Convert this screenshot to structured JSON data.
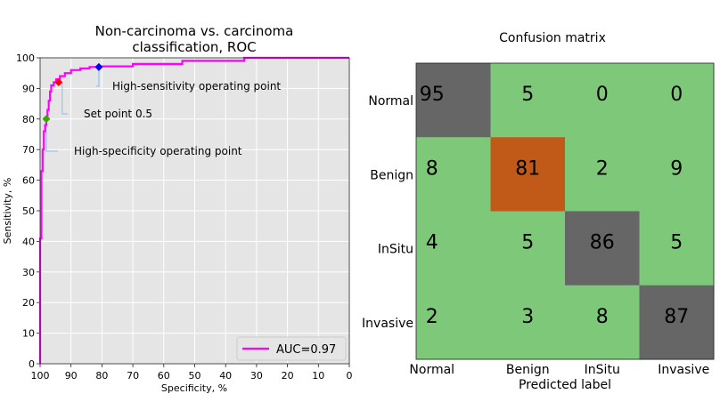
{
  "roc": {
    "title_line1": "Non-carcinoma vs. carcinoma",
    "title_line2": "classification, ROC",
    "xlabel": "Specificity, %",
    "ylabel": "Sensitivity, %",
    "xticks": [
      "100",
      "90",
      "80",
      "70",
      "60",
      "50",
      "40",
      "30",
      "20",
      "10",
      "0"
    ],
    "yticks": [
      "0",
      "10",
      "20",
      "30",
      "40",
      "50",
      "60",
      "70",
      "80",
      "90",
      "100"
    ],
    "legend_label": "AUC=0.97",
    "annotations": {
      "high_sens": "High-sensitivity operating point",
      "set_point": "Set point 0.5",
      "high_spec": "High-specificity operating point"
    },
    "colors": {
      "curve": "#ff00ff",
      "background": "#e5e5e5",
      "grid": "#ffffff",
      "high_sens_marker": "#0000ff",
      "set_point_marker": "#ff0000",
      "high_spec_marker": "#33aa00",
      "annotation_line": "#88bbee"
    }
  },
  "chart_data": [
    {
      "type": "line",
      "title": "Non-carcinoma vs. carcinoma classification, ROC",
      "xlabel": "Specificity, %",
      "ylabel": "Sensitivity, %",
      "xlim": [
        100,
        0
      ],
      "ylim": [
        0,
        100
      ],
      "grid": true,
      "legend_position": "bottom-right",
      "series": [
        {
          "name": "AUC=0.97",
          "specificity": [
            100,
            100,
            99.6,
            99.6,
            99.2,
            99.2,
            98.8,
            98.8,
            98.4,
            98.4,
            98,
            98,
            97.6,
            97.6,
            97.2,
            97.2,
            96.8,
            96.8,
            96.4,
            96.4,
            95.6,
            95.6,
            94.8,
            94.8,
            93.6,
            93.6,
            92,
            92,
            90,
            90,
            87,
            87,
            84,
            84,
            81,
            81,
            70,
            70,
            54,
            54,
            34,
            34,
            0
          ],
          "sensitivity": [
            0,
            41,
            41,
            63,
            63,
            70,
            70,
            76,
            76,
            78,
            78,
            80,
            80,
            83,
            83,
            86,
            86,
            89,
            89,
            91,
            91,
            92,
            92,
            93,
            93,
            94,
            94,
            95,
            95,
            96,
            96,
            96.5,
            96.5,
            97,
            97,
            97.2,
            97.2,
            98,
            98,
            99,
            99,
            100,
            100
          ]
        }
      ],
      "operating_points": [
        {
          "label": "High-sensitivity operating point",
          "specificity": 81,
          "sensitivity": 97
        },
        {
          "label": "Set point 0.5",
          "specificity": 94,
          "sensitivity": 92
        },
        {
          "label": "High-specificity operating point",
          "specificity": 98,
          "sensitivity": 80
        }
      ],
      "xticks": [
        100,
        90,
        80,
        70,
        60,
        50,
        40,
        30,
        20,
        10,
        0
      ],
      "yticks": [
        0,
        10,
        20,
        30,
        40,
        50,
        60,
        70,
        80,
        90,
        100
      ]
    },
    {
      "type": "heatmap",
      "title": "Confusion matrix",
      "xlabel": "Predicted label",
      "ylabel": "",
      "x_categories": [
        "Normal",
        "Benign",
        "InSitu",
        "Invasive"
      ],
      "y_categories": [
        "Normal",
        "Benign",
        "InSitu",
        "Invasive"
      ],
      "values": [
        [
          95,
          5,
          0,
          0
        ],
        [
          8,
          81,
          2,
          9
        ],
        [
          4,
          5,
          86,
          5
        ],
        [
          2,
          3,
          8,
          87
        ]
      ],
      "colors": {
        "default": "#7ec87a",
        "diagonal": "#666666",
        "highlight": "#c15a18"
      },
      "highlight_cells": [
        [
          1,
          1
        ]
      ]
    }
  ],
  "confusion": {
    "title": "Confusion matrix",
    "xlabel": "Predicted label"
  }
}
